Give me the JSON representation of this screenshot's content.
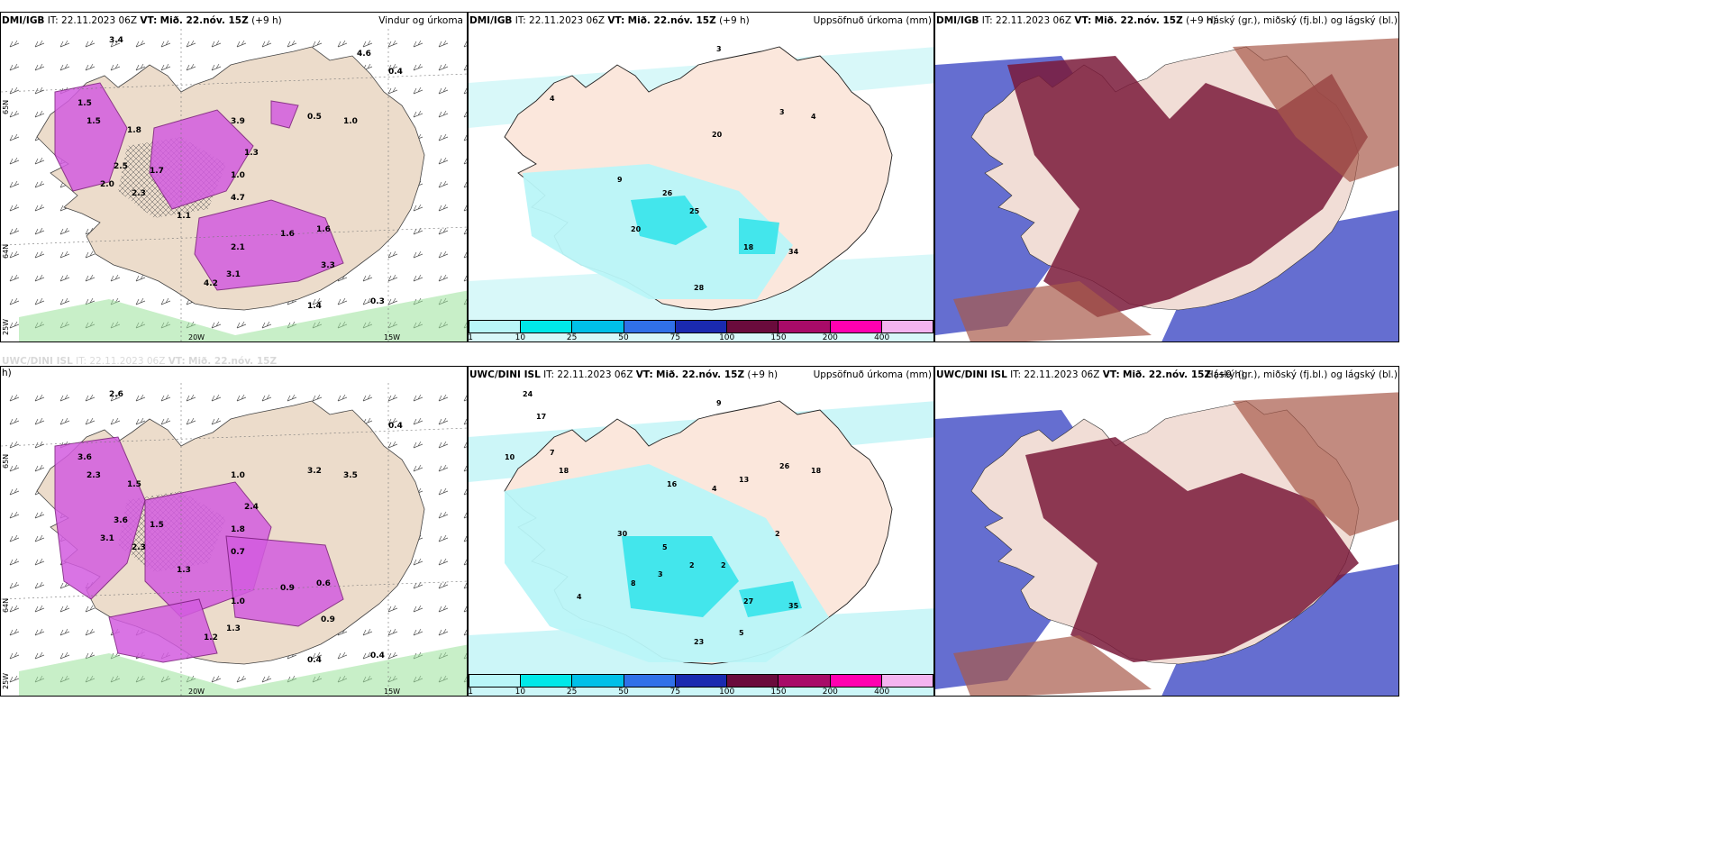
{
  "panels": [
    {
      "id": "p1",
      "source": "DMI/IGB",
      "it_label": "IT:",
      "it": "22.11.2023 06Z",
      "vt_label": "VT:",
      "vt": "Mið. 22.nóv. 15Z",
      "lead": "(+9 h)",
      "title": "Vindur og úrkoma",
      "type": "wind"
    },
    {
      "id": "p2",
      "source": "DMI/IGB",
      "it_label": "IT:",
      "it": "22.11.2023 06Z",
      "vt_label": "VT:",
      "vt": "Mið. 22.nóv. 15Z",
      "lead": "(+9 h)",
      "title": "Uppsöfnuð úrkoma (mm)",
      "type": "precip"
    },
    {
      "id": "p3",
      "source": "DMI/IGB",
      "it_label": "IT:",
      "it": "22.11.2023 06Z",
      "vt_label": "VT:",
      "vt": "Mið. 22.nóv. 15Z",
      "lead": "(+9 h)",
      "title": "Háský (gr.), miðský (fj.bl.) og lágský (bl.)",
      "type": "cloud"
    },
    {
      "id": "p4",
      "source": "UWC/DINI ISL",
      "it_label": "IT:",
      "it": "22.11.2023 06Z",
      "vt_label": "VT:",
      "vt": "Mið. 22.nóv. 15Z",
      "lead": "h)",
      "title": "",
      "type": "wind"
    },
    {
      "id": "p5",
      "source": "UWC/DINI ISL",
      "it_label": "IT:",
      "it": "22.11.2023 06Z",
      "vt_label": "VT:",
      "vt": "Mið. 22.nóv. 15Z",
      "lead": "(+9 h)",
      "title": "Uppsöfnuð úrkoma (mm)",
      "type": "precip"
    },
    {
      "id": "p6",
      "source": "UWC/DINI ISL",
      "it_label": "IT:",
      "it": "22.11.2023 06Z",
      "vt_label": "VT:",
      "vt": "Mið. 22.nóv. 15Z",
      "lead": "(+9 h)",
      "title": "Háský (gr.), miðský (fj.bl.) og lágský (bl.)",
      "type": "cloud"
    }
  ],
  "axis_labels": {
    "lat": "65N",
    "lon_20": "20W",
    "lon_15": "15W",
    "lon_25": "25W",
    "lat_64": "64N"
  },
  "colorbar": {
    "colors": [
      "#b9f6f8",
      "#00e8e8",
      "#00c0e8",
      "#3070e8",
      "#1a2ab0",
      "#6a0b3c",
      "#a80b68",
      "#ff00b0",
      "#f4b4f0"
    ],
    "labels": [
      "1",
      "10",
      "25",
      "50",
      "75",
      "100",
      "150",
      "200",
      "400"
    ]
  },
  "wind_values_top": [
    "3.4",
    "1.5",
    "1.5",
    "1.8",
    "2.5",
    "2.0",
    "2.3",
    "1.7",
    "1.3",
    "1.0",
    "4.7",
    "1.1",
    "3.9",
    "0.5",
    "1.0",
    "1.6",
    "1.6",
    "2.1",
    "3.1",
    "4.2",
    "3.3",
    "1.4",
    "0.3",
    "0.4",
    "4.6"
  ],
  "wind_values_bottom": [
    "2.6",
    "3.6",
    "2.3",
    "1.5",
    "3.6",
    "3.1",
    "2.3",
    "1.5",
    "2.4",
    "1.8",
    "0.7",
    "1.3",
    "1.0",
    "3.2",
    "3.5",
    "0.9",
    "0.6",
    "1.0",
    "1.3",
    "1.2",
    "0.9",
    "0.4",
    "0.4",
    "0.4"
  ],
  "precip_values_top": [
    "3",
    "4",
    "20",
    "26",
    "25",
    "20",
    "18",
    "34",
    "28",
    "9",
    "3",
    "4"
  ],
  "precip_values_bottom": [
    "9",
    "7",
    "4",
    "5",
    "2",
    "8",
    "27",
    "35",
    "23",
    "30",
    "26",
    "18",
    "24",
    "17",
    "10",
    "18",
    "16",
    "13",
    "2",
    "2",
    "3",
    "4",
    "5"
  ]
}
